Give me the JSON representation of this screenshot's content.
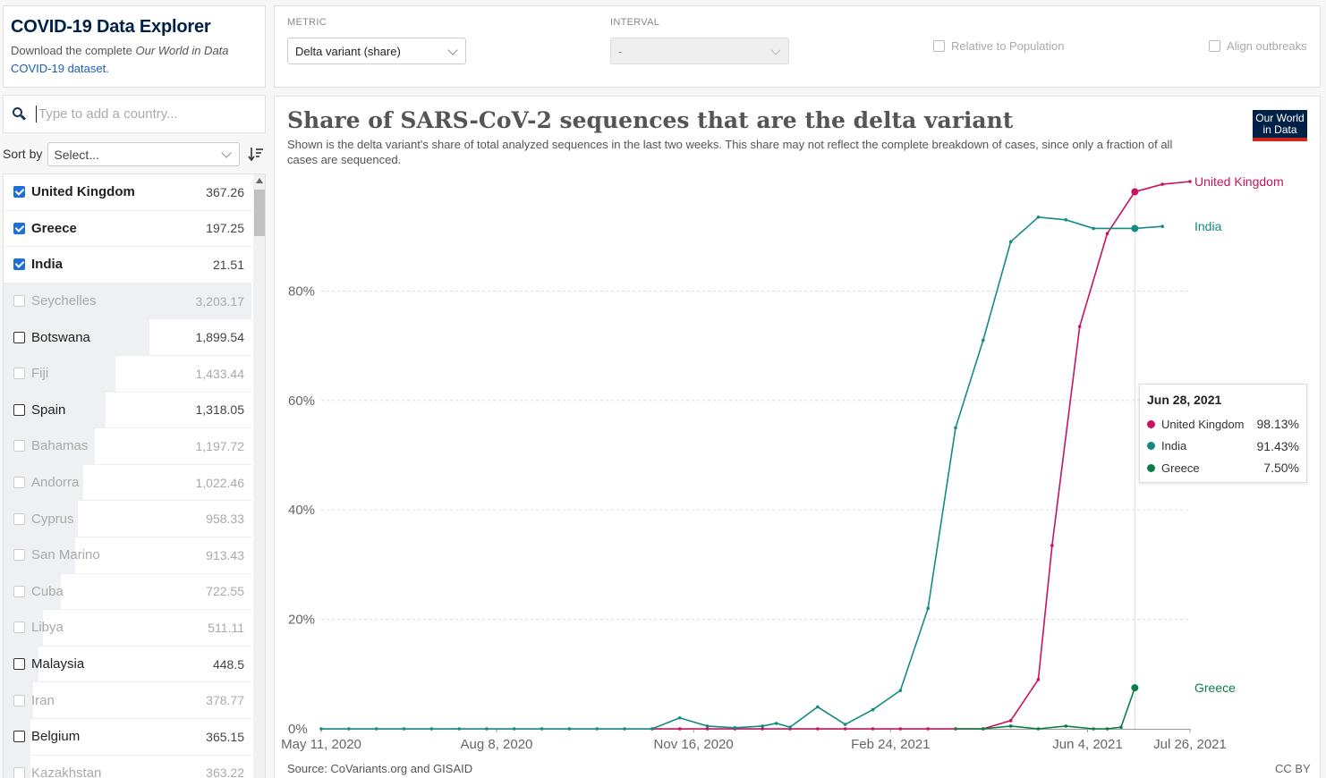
{
  "header": {
    "title": "COVID-19 Data Explorer",
    "subtitle_pre": "Download the complete ",
    "subtitle_em": "Our World in Data",
    "subtitle_link": "COVID-19 dataset."
  },
  "controls": {
    "metric_label": "METRIC",
    "metric_value": "Delta variant (share)",
    "interval_label": "INTERVAL",
    "interval_value": "-",
    "relative_label": "Relative to Population",
    "align_label": "Align outbreaks"
  },
  "search": {
    "placeholder": "Type to add a country..."
  },
  "sort": {
    "label": "Sort by",
    "select_value": "Select..."
  },
  "countries": [
    {
      "name": "United Kingdom",
      "value": "367.26",
      "checked": true,
      "faded": false,
      "bar": 0
    },
    {
      "name": "Greece",
      "value": "197.25",
      "checked": true,
      "faded": false,
      "bar": 0
    },
    {
      "name": "India",
      "value": "21.51",
      "checked": true,
      "faded": false,
      "bar": 0
    },
    {
      "name": "Seychelles",
      "value": "3,203.17",
      "checked": false,
      "faded": true,
      "bar": 1.0
    },
    {
      "name": "Botswana",
      "value": "1,899.54",
      "checked": false,
      "faded": false,
      "bar": 0.59
    },
    {
      "name": "Fiji",
      "value": "1,433.44",
      "checked": false,
      "faded": true,
      "bar": 0.45
    },
    {
      "name": "Spain",
      "value": "1,318.05",
      "checked": false,
      "faded": false,
      "bar": 0.41
    },
    {
      "name": "Bahamas",
      "value": "1,197.72",
      "checked": false,
      "faded": true,
      "bar": 0.37
    },
    {
      "name": "Andorra",
      "value": "1,022.46",
      "checked": false,
      "faded": true,
      "bar": 0.32
    },
    {
      "name": "Cyprus",
      "value": "958.33",
      "checked": false,
      "faded": true,
      "bar": 0.3
    },
    {
      "name": "San Marino",
      "value": "913.43",
      "checked": false,
      "faded": true,
      "bar": 0.29
    },
    {
      "name": "Cuba",
      "value": "722.55",
      "checked": false,
      "faded": true,
      "bar": 0.23
    },
    {
      "name": "Libya",
      "value": "511.11",
      "checked": false,
      "faded": true,
      "bar": 0.16
    },
    {
      "name": "Malaysia",
      "value": "448.5",
      "checked": false,
      "faded": false,
      "bar": 0.14
    },
    {
      "name": "Iran",
      "value": "378.77",
      "checked": false,
      "faded": true,
      "bar": 0.12
    },
    {
      "name": "Belgium",
      "value": "365.15",
      "checked": false,
      "faded": false,
      "bar": 0.11
    },
    {
      "name": "Kazakhstan",
      "value": "363.22",
      "checked": false,
      "faded": true,
      "bar": 0.11
    }
  ],
  "chart": {
    "title": "Share of SARS-CoV-2 sequences that are the delta variant",
    "subtitle": "Shown is the delta variant's share of total analyzed sequences in the last two weeks. This share may not reflect the complete breakdown of cases, since only a fraction of all cases are sequenced.",
    "logo_line1": "Our World",
    "logo_line2": "in Data",
    "source": "Source: CoVariants.org and GISAID",
    "license": "CC BY"
  },
  "tooltip": {
    "date": "Jun 28, 2021",
    "rows": [
      {
        "name": "United Kingdom",
        "value": "98.13%",
        "color": "#c6135f"
      },
      {
        "name": "India",
        "value": "91.43%",
        "color": "#148a84"
      },
      {
        "name": "Greece",
        "value": "7.50%",
        "color": "#0b7d48"
      }
    ]
  },
  "chart_data": {
    "type": "line",
    "title": "Share of SARS-CoV-2 sequences that are the delta variant",
    "y_unit": "%",
    "ylim": [
      0,
      100
    ],
    "y_ticks": [
      0,
      20,
      40,
      60,
      80
    ],
    "y_tick_labels": [
      "0%",
      "20%",
      "40%",
      "60%",
      "80%"
    ],
    "x_range": [
      "2020-05-11",
      "2021-07-26"
    ],
    "x_ticks": [
      {
        "date": "2020-05-11",
        "label": "May 11, 2020"
      },
      {
        "date": "2020-08-08",
        "label": "Aug 8, 2020"
      },
      {
        "date": "2020-11-16",
        "label": "Nov 16, 2020"
      },
      {
        "date": "2021-02-24",
        "label": "Feb 24, 2021"
      },
      {
        "date": "2021-06-04",
        "label": "Jun 4, 2021"
      },
      {
        "date": "2021-07-26",
        "label": "Jul 26, 2021"
      }
    ],
    "grid": true,
    "hover_date": "2021-06-28",
    "series": [
      {
        "name": "United Kingdom",
        "color": "#c6135f",
        "points": [
          [
            "2020-10-26",
            0
          ],
          [
            "2020-11-09",
            0
          ],
          [
            "2020-11-23",
            0
          ],
          [
            "2020-12-07",
            0
          ],
          [
            "2020-12-21",
            0
          ],
          [
            "2021-01-04",
            0
          ],
          [
            "2021-01-18",
            0
          ],
          [
            "2021-02-01",
            0
          ],
          [
            "2021-02-15",
            0
          ],
          [
            "2021-03-01",
            0
          ],
          [
            "2021-03-15",
            0
          ],
          [
            "2021-03-29",
            0
          ],
          [
            "2021-04-12",
            0
          ],
          [
            "2021-04-26",
            1.5
          ],
          [
            "2021-05-10",
            9
          ],
          [
            "2021-05-17",
            33.5
          ],
          [
            "2021-05-31",
            73.5
          ],
          [
            "2021-06-14",
            90.5
          ],
          [
            "2021-06-28",
            98.13
          ],
          [
            "2021-07-12",
            99.5
          ],
          [
            "2021-07-26",
            100
          ]
        ]
      },
      {
        "name": "India",
        "color": "#148a84",
        "points": [
          [
            "2020-05-11",
            0
          ],
          [
            "2020-05-25",
            0
          ],
          [
            "2020-06-08",
            0
          ],
          [
            "2020-06-22",
            0
          ],
          [
            "2020-07-06",
            0
          ],
          [
            "2020-07-20",
            0
          ],
          [
            "2020-08-03",
            0
          ],
          [
            "2020-08-17",
            0
          ],
          [
            "2020-08-31",
            0
          ],
          [
            "2020-09-14",
            0
          ],
          [
            "2020-09-28",
            0
          ],
          [
            "2020-10-12",
            0
          ],
          [
            "2020-10-26",
            0
          ],
          [
            "2020-11-09",
            2.0
          ],
          [
            "2020-11-23",
            0.5
          ],
          [
            "2020-12-07",
            0.2
          ],
          [
            "2020-12-21",
            0.5
          ],
          [
            "2020-12-28",
            1.0
          ],
          [
            "2021-01-04",
            0.3
          ],
          [
            "2021-01-18",
            4.0
          ],
          [
            "2021-02-01",
            0.8
          ],
          [
            "2021-02-15",
            3.5
          ],
          [
            "2021-03-01",
            7.0
          ],
          [
            "2021-03-15",
            22.0
          ],
          [
            "2021-03-29",
            55.0
          ],
          [
            "2021-04-12",
            71.0
          ],
          [
            "2021-04-26",
            89.0
          ],
          [
            "2021-05-10",
            93.5
          ],
          [
            "2021-05-24",
            93.0
          ],
          [
            "2021-06-07",
            91.43
          ],
          [
            "2021-06-28",
            91.43
          ],
          [
            "2021-07-12",
            91.8
          ]
        ]
      },
      {
        "name": "Greece",
        "color": "#0b7d48",
        "points": [
          [
            "2021-03-29",
            0
          ],
          [
            "2021-04-12",
            0
          ],
          [
            "2021-04-26",
            0.5
          ],
          [
            "2021-05-10",
            0
          ],
          [
            "2021-05-24",
            0.5
          ],
          [
            "2021-06-07",
            0
          ],
          [
            "2021-06-14",
            0
          ],
          [
            "2021-06-21",
            0.3
          ],
          [
            "2021-06-28",
            7.5
          ]
        ]
      }
    ]
  }
}
